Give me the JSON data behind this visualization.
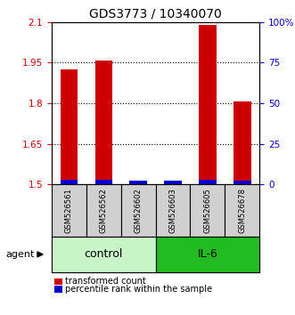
{
  "title": "GDS3773 / 10340070",
  "samples": [
    "GSM526561",
    "GSM526562",
    "GSM526602",
    "GSM526603",
    "GSM526605",
    "GSM526678"
  ],
  "red_values": [
    1.925,
    1.957,
    1.515,
    1.515,
    2.09,
    1.805
  ],
  "blue_percentile": [
    3,
    3,
    2,
    2,
    3,
    2
  ],
  "ylim_left": [
    1.5,
    2.1
  ],
  "ylim_right": [
    0,
    100
  ],
  "yticks_left": [
    1.5,
    1.65,
    1.8,
    1.95,
    2.1
  ],
  "ytick_labels_left": [
    "1.5",
    "1.65",
    "1.8",
    "1.95",
    "2.1"
  ],
  "yticks_right": [
    0,
    25,
    50,
    75,
    100
  ],
  "ytick_labels_right": [
    "0",
    "25",
    "50",
    "75",
    "100%"
  ],
  "hlines": [
    1.65,
    1.8,
    1.95
  ],
  "groups": [
    {
      "label": "control",
      "indices": [
        0,
        1,
        2
      ],
      "color_light": "#c8f5c8",
      "color_dark": "#22bb22"
    },
    {
      "label": "IL-6",
      "indices": [
        3,
        4,
        5
      ],
      "color_light": "#44dd44",
      "color_dark": "#22bb22"
    }
  ],
  "bar_width": 0.5,
  "red_color": "#cc0000",
  "blue_color": "#0000cc",
  "gray_color": "#d0d0d0",
  "agent_label": "agent",
  "legend_red": "transformed count",
  "legend_blue": "percentile rank within the sample",
  "title_fontsize": 10,
  "tick_fontsize": 7.5,
  "sample_fontsize": 6,
  "group_fontsize": 9
}
